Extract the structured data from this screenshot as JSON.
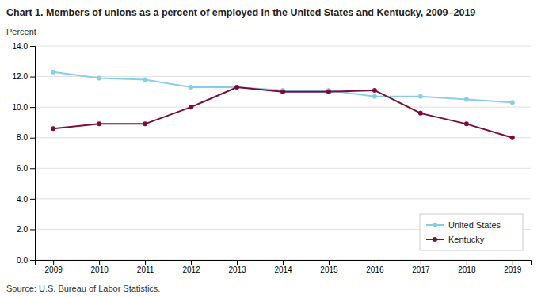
{
  "chart_data": {
    "type": "line",
    "title": "Chart 1. Members of unions as a percent of employed in the United States and Kentucky, 2009–2019",
    "y_label": "Percent",
    "source": "Source: U.S. Bureau of Labor Statistics.",
    "x": [
      2009,
      2010,
      2011,
      2012,
      2013,
      2014,
      2015,
      2016,
      2017,
      2018,
      2019
    ],
    "series": [
      {
        "name": "United States",
        "color": "#87CEEB",
        "marker": "circle",
        "values": [
          12.3,
          11.9,
          11.8,
          11.3,
          11.3,
          11.1,
          11.1,
          10.7,
          10.7,
          10.5,
          10.3
        ]
      },
      {
        "name": "Kentucky",
        "color": "#7B0D3A",
        "marker": "circle",
        "values": [
          8.6,
          8.9,
          8.9,
          10.0,
          11.3,
          11.0,
          11.0,
          11.1,
          9.6,
          8.9,
          8.0
        ]
      }
    ],
    "xlim": [
      2008.6,
      2019.4
    ],
    "xticks": [
      2009,
      2010,
      2011,
      2012,
      2013,
      2014,
      2015,
      2016,
      2017,
      2018,
      2019
    ],
    "ylim": [
      0,
      14.0
    ],
    "yticks": [
      {
        "value": 0.0,
        "label": "0.0"
      },
      {
        "value": 2.0,
        "label": "2.0"
      },
      {
        "value": 4.0,
        "label": "4.0"
      },
      {
        "value": 6.0,
        "label": "6.0"
      },
      {
        "value": 8.0,
        "label": "8.0"
      },
      {
        "value": 10.0,
        "label": "10.0"
      },
      {
        "value": 12.0,
        "label": "12.0"
      },
      {
        "value": 14.0,
        "label": "14.0"
      }
    ],
    "grid": true,
    "legend": "lower right"
  }
}
